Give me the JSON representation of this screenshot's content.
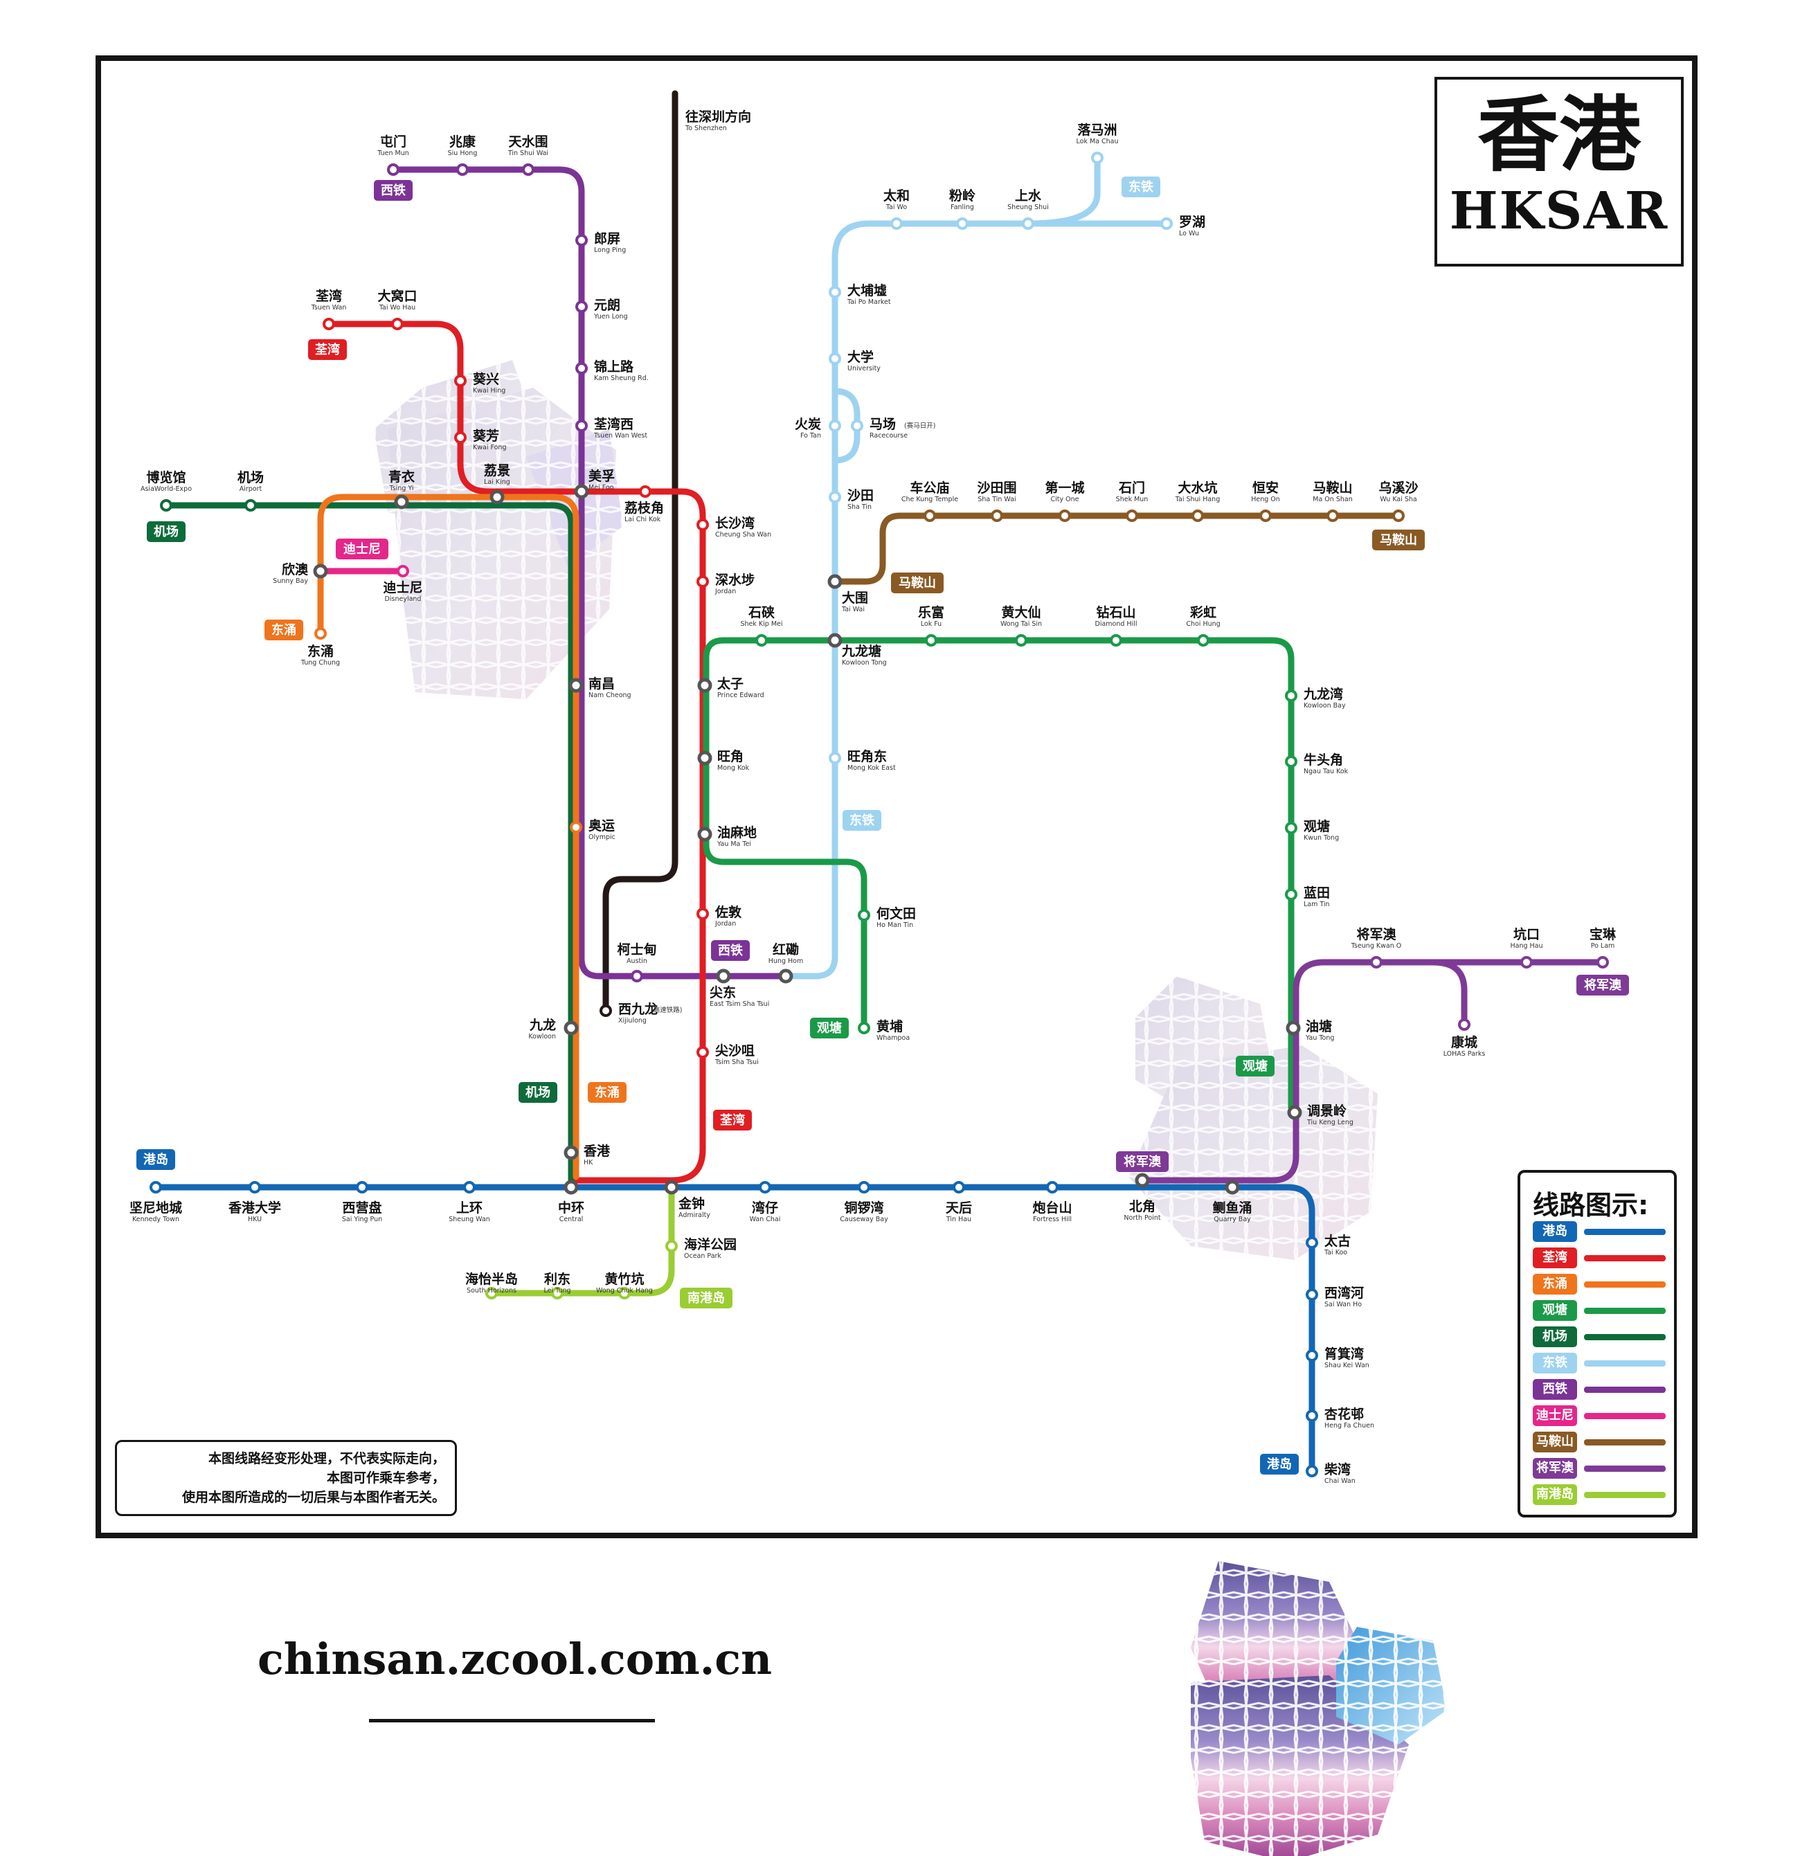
{
  "title": {
    "zh": "香港",
    "en": "HKSAR"
  },
  "legend_title": "线路图示:",
  "legend": [
    {
      "name": "港岛",
      "color": "#1267B5"
    },
    {
      "name": "荃湾",
      "color": "#E01E23"
    },
    {
      "name": "东涌",
      "color": "#F0741C"
    },
    {
      "name": "观塘",
      "color": "#1A9A48"
    },
    {
      "name": "机场",
      "color": "#0E6B3A"
    },
    {
      "name": "东铁",
      "color": "#9DD3F1"
    },
    {
      "name": "西铁",
      "color": "#7B3396"
    },
    {
      "name": "迪士尼",
      "color": "#E6268A"
    },
    {
      "name": "马鞍山",
      "color": "#8A5A24"
    },
    {
      "name": "将军澳",
      "color": "#7E3A96"
    },
    {
      "name": "南港岛",
      "color": "#9ACD32"
    }
  ],
  "direction": {
    "zh": "往深圳方向",
    "en": "To Shenzhen"
  },
  "disclaimer": [
    "本图线路经变形处理，不代表实际走向，",
    "本图可作乘车参考，",
    "使用本图所造成的一切后果与本图作者无关。"
  ],
  "website": "chinsan.zcool.com.cn",
  "stations": [
    {
      "zh": "屯门",
      "en": "Tuen Mun"
    },
    {
      "zh": "兆康",
      "en": "Siu Hong"
    },
    {
      "zh": "天水围",
      "en": "Tin Shui Wai"
    },
    {
      "zh": "郎屏",
      "en": "Long Ping"
    },
    {
      "zh": "元朗",
      "en": "Yuen Long"
    },
    {
      "zh": "锦上路",
      "en": "Kam Sheung Rd."
    },
    {
      "zh": "荃湾西",
      "en": "Tsuen Wan West"
    },
    {
      "zh": "美孚",
      "en": "Mei Foo"
    },
    {
      "zh": "南昌",
      "en": "Nam Cheong"
    },
    {
      "zh": "奥运",
      "en": "Olympic"
    },
    {
      "zh": "柯士甸",
      "en": "Austin"
    },
    {
      "zh": "尖东",
      "en": "East Tsim Sha Tsui"
    },
    {
      "zh": "红磡",
      "en": "Hung Hom"
    },
    {
      "zh": "荃湾",
      "en": "Tsuen Wan"
    },
    {
      "zh": "大窝口",
      "en": "Tai Wo Hau"
    },
    {
      "zh": "葵兴",
      "en": "Kwai Hing"
    },
    {
      "zh": "葵芳",
      "en": "Kwai Fong"
    },
    {
      "zh": "荔景",
      "en": "Lai King"
    },
    {
      "zh": "荔枝角",
      "en": "Lai Chi Kok"
    },
    {
      "zh": "长沙湾",
      "en": "Cheung Sha Wan"
    },
    {
      "zh": "深水埗",
      "en": "Jordan"
    },
    {
      "zh": "太子",
      "en": "Prince Edward"
    },
    {
      "zh": "旺角",
      "en": "Mong Kok"
    },
    {
      "zh": "油麻地",
      "en": "Yau Ma Tei"
    },
    {
      "zh": "佐敦",
      "en": "Jordan"
    },
    {
      "zh": "尖沙咀",
      "en": "Tsim Sha Tsui"
    },
    {
      "zh": "金钟",
      "en": "Admiralty"
    },
    {
      "zh": "中环",
      "en": "Central"
    },
    {
      "zh": "博览馆",
      "en": "AsiaWorld-Expo"
    },
    {
      "zh": "机场",
      "en": "Airport"
    },
    {
      "zh": "青衣",
      "en": "Tsing Yi"
    },
    {
      "zh": "欣澳",
      "en": "Sunny Bay"
    },
    {
      "zh": "迪士尼",
      "en": "Disneyland"
    },
    {
      "zh": "东涌",
      "en": "Tung Chung"
    },
    {
      "zh": "九龙",
      "en": "Kowloon"
    },
    {
      "zh": "香港",
      "en": "HK"
    },
    {
      "zh": "西九龙",
      "en": "Xijiulong"
    },
    {
      "zh": "坚尼地城",
      "en": "Kennedy Town"
    },
    {
      "zh": "香港大学",
      "en": "HKU"
    },
    {
      "zh": "西营盘",
      "en": "Sai Ying Pun"
    },
    {
      "zh": "上环",
      "en": "Sheung Wan"
    },
    {
      "zh": "湾仔",
      "en": "Wan Chai"
    },
    {
      "zh": "铜锣湾",
      "en": "Causeway Bay"
    },
    {
      "zh": "天后",
      "en": "Tin Hau"
    },
    {
      "zh": "炮台山",
      "en": "Fortress Hill"
    },
    {
      "zh": "北角",
      "en": "North Point"
    },
    {
      "zh": "鲗鱼涌",
      "en": "Quarry Bay"
    },
    {
      "zh": "太古",
      "en": "Tai Koo"
    },
    {
      "zh": "西湾河",
      "en": "Sai Wan Ho"
    },
    {
      "zh": "筲箕湾",
      "en": "Shau Kei Wan"
    },
    {
      "zh": "杏花邨",
      "en": "Heng Fa Chuen"
    },
    {
      "zh": "柴湾",
      "en": "Chai Wan"
    },
    {
      "zh": "海洋公园",
      "en": "Ocean Park"
    },
    {
      "zh": "黄竹坑",
      "en": "Wong Chuk Hang"
    },
    {
      "zh": "利东",
      "en": "Lei Tung"
    },
    {
      "zh": "海怡半岛",
      "en": "South Horizons"
    },
    {
      "zh": "罗湖",
      "en": "Lo Wu"
    },
    {
      "zh": "落马洲",
      "en": "Lok Ma Chau"
    },
    {
      "zh": "上水",
      "en": "Sheung Shui"
    },
    {
      "zh": "粉岭",
      "en": "Fanling"
    },
    {
      "zh": "太和",
      "en": "Tai Wo"
    },
    {
      "zh": "大埔墟",
      "en": "Tai Po Market"
    },
    {
      "zh": "大学",
      "en": "University"
    },
    {
      "zh": "火炭",
      "en": "Fo Tan"
    },
    {
      "zh": "马场",
      "en": "Racecourse"
    },
    {
      "zh": "沙田",
      "en": "Sha Tin"
    },
    {
      "zh": "大围",
      "en": "Tai Wai"
    },
    {
      "zh": "九龙塘",
      "en": "Kowloon Tong"
    },
    {
      "zh": "旺角东",
      "en": "Mong Kok East"
    },
    {
      "zh": "车公庙",
      "en": "Che Kung Temple"
    },
    {
      "zh": "沙田围",
      "en": "Sha Tin Wai"
    },
    {
      "zh": "第一城",
      "en": "City One"
    },
    {
      "zh": "石门",
      "en": "Shek Mun"
    },
    {
      "zh": "大水坑",
      "en": "Tai Shui Hang"
    },
    {
      "zh": "恒安",
      "en": "Heng On"
    },
    {
      "zh": "马鞍山",
      "en": "Ma On Shan"
    },
    {
      "zh": "乌溪沙",
      "en": "Wu Kai Sha"
    },
    {
      "zh": "石硖",
      "en": "Shek Kip Mei"
    },
    {
      "zh": "乐富",
      "en": "Lok Fu"
    },
    {
      "zh": "黄大仙",
      "en": "Wong Tai Sin"
    },
    {
      "zh": "钻石山",
      "en": "Diamond Hill"
    },
    {
      "zh": "彩虹",
      "en": "Choi Hung"
    },
    {
      "zh": "九龙湾",
      "en": "Kowloon Bay"
    },
    {
      "zh": "牛头角",
      "en": "Ngau Tau Kok"
    },
    {
      "zh": "观塘",
      "en": "Kwun Tong"
    },
    {
      "zh": "蓝田",
      "en": "Lam Tin"
    },
    {
      "zh": "油塘",
      "en": "Yau Tong"
    },
    {
      "zh": "调景岭",
      "en": "Tiu Keng Leng"
    },
    {
      "zh": "何文田",
      "en": "Ho Man Tin"
    },
    {
      "zh": "黄埔",
      "en": "Whampoa"
    },
    {
      "zh": "将军澳",
      "en": "Tseung Kwan O"
    },
    {
      "zh": "坑口",
      "en": "Hang Hau"
    },
    {
      "zh": "宝琳",
      "en": "Po Lam"
    },
    {
      "zh": "康城",
      "en": "LOHAS Parks"
    }
  ],
  "xijiulong_note": "(高速铁路)",
  "racecourse_note": "(赛马日开)"
}
